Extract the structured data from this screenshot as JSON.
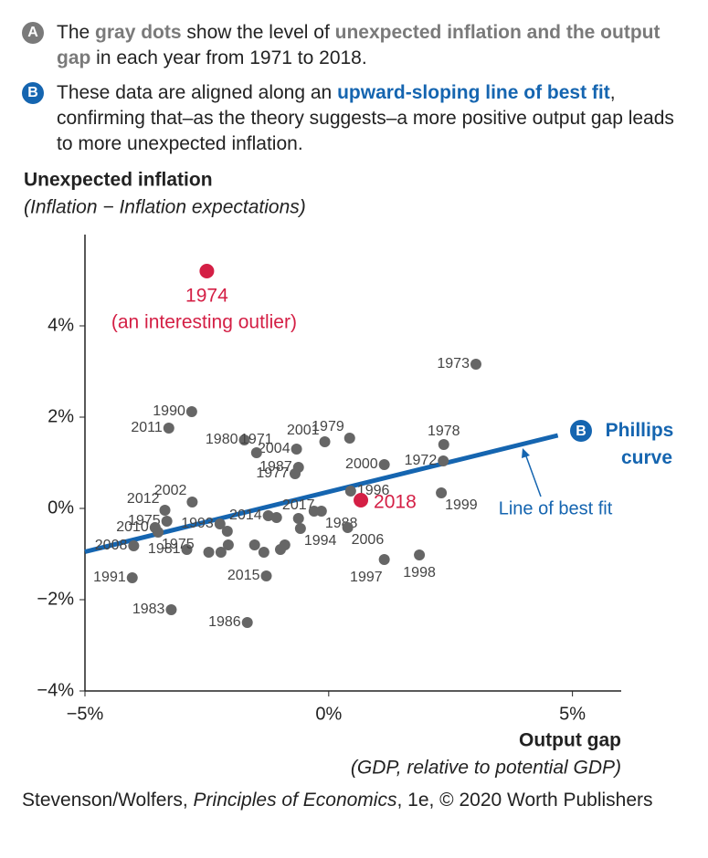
{
  "notes": [
    {
      "badge": "A",
      "segments": [
        "The ",
        "gray dots",
        " show the level of ",
        "unexpected inflation and the output gap",
        " in each year from 1971 to 2018."
      ]
    },
    {
      "badge": "B",
      "segments": [
        "These data are aligned along an ",
        "upward-sloping line of best fit",
        ", confirming that–as the theory suggests–a more positive output gap leads to more unexpected inflation."
      ]
    }
  ],
  "chart_data": {
    "type": "scatter",
    "y_title": "Unexpected inflation",
    "y_subtitle": "(Inflation − Inflation expectations)",
    "x_title": "Output gap",
    "x_subtitle": "(GDP, relative to potential GDP)",
    "xlim": [
      -5,
      6
    ],
    "ylim": [
      -4,
      6
    ],
    "xticks": [
      {
        "value": -5,
        "label": "−5%"
      },
      {
        "value": 0,
        "label": "0%"
      },
      {
        "value": 5,
        "label": "5%"
      }
    ],
    "yticks": [
      {
        "value": -4,
        "label": "−4%"
      },
      {
        "value": -2,
        "label": "−2%"
      },
      {
        "value": 0,
        "label": "0%"
      },
      {
        "value": 2,
        "label": "2%"
      },
      {
        "value": 4,
        "label": "4%"
      }
    ],
    "series": [
      {
        "color": "#666666",
        "x": [
          3.02,
          -2.81,
          -3.28,
          -1.73,
          -0.66,
          -0.08,
          0.43,
          2.36,
          -1.48,
          -0.62,
          -0.69,
          1.14,
          2.35,
          2.31,
          0.45,
          -2.8,
          -3.36,
          -3.32,
          -3.56,
          -4.0,
          -2.23,
          -2.08,
          -2.91,
          -3.5,
          -1.24,
          -1.07,
          -0.62,
          -0.58,
          -0.15,
          -0.3,
          0.39,
          1.14,
          1.86,
          -1.28,
          -1.67,
          -3.23,
          -4.03,
          -2.46,
          -2.21,
          -2.06,
          -1.52,
          -1.33,
          -0.99,
          -0.9
        ],
        "values": [
          3.16,
          2.12,
          1.76,
          1.5,
          1.3,
          1.46,
          1.54,
          1.4,
          1.22,
          0.9,
          0.76,
          0.96,
          1.04,
          0.34,
          0.38,
          0.14,
          -0.04,
          -0.28,
          -0.42,
          -0.82,
          -0.34,
          -0.5,
          -0.9,
          -0.52,
          -0.16,
          -0.2,
          -0.22,
          -0.44,
          -0.06,
          -0.06,
          -0.42,
          -1.12,
          -1.02,
          -1.48,
          -2.5,
          -2.22,
          -1.52,
          -0.96,
          -0.96,
          -0.8,
          -0.8,
          -0.96,
          -0.9,
          -0.8
        ],
        "labels": [
          "1973",
          "1990",
          "2011",
          "1980",
          "2004",
          "2001",
          "1979",
          "1978",
          "1971",
          "1987",
          "1977",
          "2000",
          "1972",
          "1999",
          "1996",
          "2002",
          "2012",
          "1975",
          "2010",
          "2008",
          "1993",
          null,
          "1981",
          "1975",
          "2014",
          null,
          "2017",
          "1994",
          "1988",
          null,
          "2006",
          "1997",
          "1998",
          "2015",
          "1986",
          "1983",
          "1991",
          null,
          null,
          null,
          null,
          null,
          null,
          null
        ]
      },
      {
        "color": "#d41f45",
        "x": [
          -2.5,
          0.66
        ],
        "values": [
          5.2,
          0.18
        ],
        "labels": [
          "1974",
          "2018"
        ]
      }
    ],
    "outlier_note": "(an interesting outlier)",
    "fit": {
      "color": "#1565b0",
      "x": [
        -5,
        4.7
      ],
      "values": [
        -0.95,
        1.6
      ],
      "label": "Line of best fit",
      "badge": "B",
      "name": "Phillips curve"
    }
  },
  "caption": {
    "text": "Stevenson/Wolfers, ",
    "italic": "Principles of Economics",
    "rest": ", 1e, © 2020 Worth Publishers"
  }
}
